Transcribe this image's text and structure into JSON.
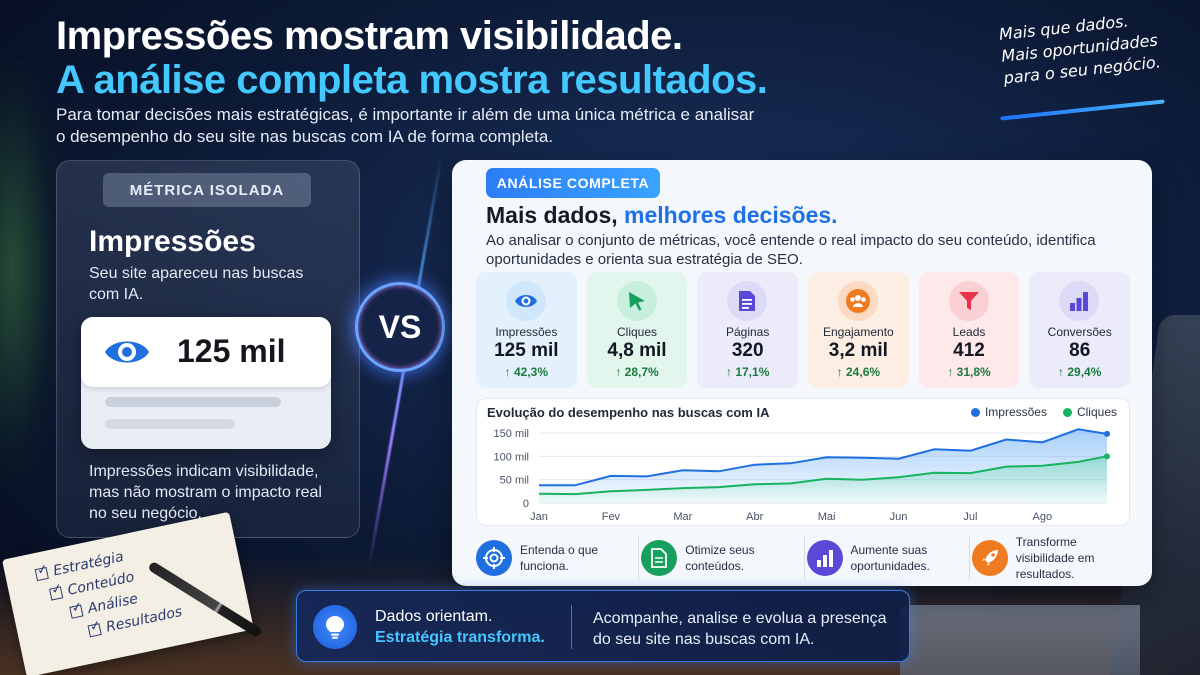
{
  "header": {
    "title_line1": "Impressões mostram visibilidade.",
    "title_line2": "A análise completa mostra resultados.",
    "intro": "Para tomar decisões mais estratégicas, é importante ir além de uma única métrica e analisar o desempenho do seu site nas buscas com IA de forma completa."
  },
  "handwritten": {
    "line1": "Mais que dados.",
    "line2": "Mais oportunidades",
    "line3": "para o seu negócio."
  },
  "left_card": {
    "badge": "MÉTRICA ISOLADA",
    "heading": "Impressões",
    "subtext": "Seu site apareceu nas buscas com IA.",
    "value": "125 mil",
    "footer": "Impressões indicam visibilidade, mas não mostram o impacto real no seu negócio."
  },
  "vs_label": "VS",
  "right_card": {
    "badge": "ANÁLISE COMPLETA",
    "heading_plain": "Mais dados, ",
    "heading_highlight": "melhores decisões.",
    "subtext": "Ao analisar o conjunto de métricas, você entende o real impacto do seu conteúdo, identifica oportunidades e orienta sua estratégia de SEO.",
    "metrics": [
      {
        "name": "Impressões",
        "value": "125 mil",
        "change": "↑ 42,3%",
        "icon": "eye-icon",
        "bg": "#e3f1fd",
        "icon_bg": "#cfe6fb",
        "color": "#1f6fe0"
      },
      {
        "name": "Cliques",
        "value": "4,8 mil",
        "change": "↑ 28,7%",
        "icon": "cursor-icon",
        "bg": "#e2f6ee",
        "icon_bg": "#c8efdd",
        "color": "#17a05d"
      },
      {
        "name": "Páginas",
        "value": "320",
        "change": "↑ 17,1%",
        "icon": "document-icon",
        "bg": "#ecebfa",
        "icon_bg": "#dcdaf7",
        "color": "#5a49d6"
      },
      {
        "name": "Engajamento",
        "value": "3,2 mil",
        "change": "↑ 24,6%",
        "icon": "users-icon",
        "bg": "#fdeee3",
        "icon_bg": "#fbd9c2",
        "color": "#ef7a1f"
      },
      {
        "name": "Leads",
        "value": "412",
        "change": "↑ 31,8%",
        "icon": "funnel-icon",
        "bg": "#fde8ea",
        "icon_bg": "#fad0d5",
        "color": "#e6334a"
      },
      {
        "name": "Conversões",
        "value": "86",
        "change": "↑ 29,4%",
        "icon": "bar-chart-icon",
        "bg": "#ecebfa",
        "icon_bg": "#dcdaf7",
        "color": "#5a49d6"
      }
    ],
    "features": [
      {
        "text": "Entenda o que funciona.",
        "icon": "target-icon",
        "color": "#1f6fe0"
      },
      {
        "text": "Otimize seus conteúdos.",
        "icon": "document-icon",
        "color": "#17a05d"
      },
      {
        "text": "Aumente suas oportunidades.",
        "icon": "bar-chart-icon",
        "color": "#5a49d6"
      },
      {
        "text": "Transforme visibilidade em resultados.",
        "icon": "rocket-icon",
        "color": "#ef7a1f"
      }
    ]
  },
  "chart_data": {
    "type": "line",
    "title": "Evolução do desempenho nas buscas com IA",
    "categories": [
      "Jan",
      "Fev",
      "Mar",
      "Abr",
      "Mai",
      "Jun",
      "Jul",
      "Ago"
    ],
    "x": [
      0,
      0.5,
      1,
      1.5,
      2,
      2.5,
      3,
      3.5,
      4,
      4.5,
      5,
      5.5,
      6,
      6.5,
      7,
      7.5,
      7.9
    ],
    "yticks": [
      "150 mil",
      "100 mil",
      "50 mil",
      "0"
    ],
    "ylim": [
      0,
      150
    ],
    "legend_position": "top-right",
    "series": [
      {
        "name": "Impressões",
        "color": "#1f6fe0",
        "values": [
          38,
          38,
          58,
          57,
          70,
          68,
          82,
          85,
          98,
          97,
          95,
          115,
          112,
          136,
          130,
          158,
          148
        ]
      },
      {
        "name": "Cliques",
        "color": "#17b35e",
        "values": [
          20,
          19,
          25,
          28,
          32,
          34,
          40,
          42,
          52,
          50,
          55,
          65,
          64,
          78,
          80,
          88,
          100
        ]
      }
    ]
  },
  "banner": {
    "line1": "Dados orientam.",
    "line2": "Estratégia transforma.",
    "right_text": "Acompanhe, analise e evolua a presença do seu site nas buscas com IA.",
    "icon": "lightbulb-icon"
  },
  "notepad": {
    "items": [
      "Estratégia",
      "Conteúdo",
      "Análise",
      "Resultados"
    ]
  }
}
